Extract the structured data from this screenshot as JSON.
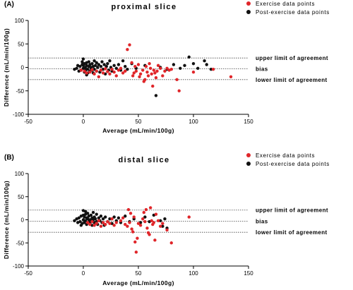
{
  "colors": {
    "exercise": "#e0262a",
    "post_exercise": "#111111",
    "axis": "#000000",
    "ref_line": "#444444"
  },
  "chart_data": [
    {
      "type": "scatter",
      "panel_label": "(A)",
      "title": "proximal slice",
      "xlabel": "Average (mL/min/100g)",
      "ylabel": "Difference (mL/min/100g)",
      "xlim": [
        -50,
        150
      ],
      "ylim": [
        -100,
        100
      ],
      "xticks": [
        "-50",
        "0",
        "50",
        "100",
        "150"
      ],
      "yticks": [
        "-100",
        "-50",
        "0",
        "50",
        "100"
      ],
      "grid": false,
      "legend_position": "top-right",
      "reference_lines": [
        {
          "label": "upper limit of agreement",
          "y": 20
        },
        {
          "label": "bias",
          "y": -3
        },
        {
          "label": "lower limit of agreement",
          "y": -26
        }
      ],
      "series": [
        {
          "name": "Exercise data points",
          "color": "exercise",
          "points": [
            [
              -2,
              -6
            ],
            [
              1,
              -8
            ],
            [
              3,
              -12
            ],
            [
              6,
              -10
            ],
            [
              8,
              -5
            ],
            [
              10,
              -14
            ],
            [
              12,
              -8
            ],
            [
              14,
              -20
            ],
            [
              16,
              -6
            ],
            [
              18,
              -12
            ],
            [
              20,
              -3
            ],
            [
              22,
              -9
            ],
            [
              24,
              -14
            ],
            [
              26,
              -4
            ],
            [
              28,
              -10
            ],
            [
              30,
              -18
            ],
            [
              32,
              -6
            ],
            [
              34,
              -2
            ],
            [
              36,
              -12
            ],
            [
              38,
              -8
            ],
            [
              40,
              38
            ],
            [
              42,
              48
            ],
            [
              44,
              10
            ],
            [
              45,
              -18
            ],
            [
              46,
              -12
            ],
            [
              47,
              2
            ],
            [
              48,
              -8
            ],
            [
              50,
              6
            ],
            [
              51,
              -20
            ],
            [
              52,
              -14
            ],
            [
              54,
              -6
            ],
            [
              55,
              -30
            ],
            [
              56,
              -26
            ],
            [
              57,
              2
            ],
            [
              58,
              -10
            ],
            [
              59,
              -18
            ],
            [
              60,
              8
            ],
            [
              61,
              -2
            ],
            [
              62,
              -14
            ],
            [
              63,
              -40
            ],
            [
              64,
              -6
            ],
            [
              65,
              -12
            ],
            [
              66,
              -22
            ],
            [
              67,
              -8
            ],
            [
              68,
              4
            ],
            [
              70,
              -2
            ],
            [
              72,
              -18
            ],
            [
              74,
              -8
            ],
            [
              76,
              -2
            ],
            [
              78,
              -6
            ],
            [
              80,
              -4
            ],
            [
              85,
              -26
            ],
            [
              87,
              -50
            ],
            [
              100,
              -10
            ],
            [
              118,
              -4
            ],
            [
              134,
              -20
            ]
          ]
        },
        {
          "name": "Post-exercise data points",
          "color": "post_exercise",
          "points": [
            [
              -8,
              -4
            ],
            [
              -6,
              -2
            ],
            [
              -5,
              4
            ],
            [
              -4,
              -8
            ],
            [
              -3,
              2
            ],
            [
              -2,
              -6
            ],
            [
              -1,
              6
            ],
            [
              0,
              -2
            ],
            [
              0,
              4
            ],
            [
              1,
              -10
            ],
            [
              1,
              8
            ],
            [
              2,
              0
            ],
            [
              2,
              -6
            ],
            [
              3,
              4
            ],
            [
              3,
              10
            ],
            [
              4,
              -4
            ],
            [
              4,
              -12
            ],
            [
              5,
              2
            ],
            [
              5,
              12
            ],
            [
              6,
              -8
            ],
            [
              6,
              6
            ],
            [
              7,
              -2
            ],
            [
              7,
              0
            ],
            [
              8,
              -6
            ],
            [
              8,
              8
            ],
            [
              9,
              2
            ],
            [
              9,
              -12
            ],
            [
              10,
              14
            ],
            [
              10,
              -4
            ],
            [
              11,
              4
            ],
            [
              12,
              -8
            ],
            [
              12,
              10
            ],
            [
              13,
              0
            ],
            [
              14,
              6
            ],
            [
              15,
              -10
            ],
            [
              16,
              2
            ],
            [
              17,
              12
            ],
            [
              18,
              -4
            ],
            [
              19,
              6
            ],
            [
              20,
              -14
            ],
            [
              21,
              2
            ],
            [
              22,
              8
            ],
            [
              23,
              -6
            ],
            [
              24,
              14
            ],
            [
              25,
              0
            ],
            [
              26,
              -8
            ],
            [
              28,
              4
            ],
            [
              30,
              -2
            ],
            [
              32,
              6
            ],
            [
              34,
              -6
            ],
            [
              36,
              14
            ],
            [
              38,
              2
            ],
            [
              40,
              -4
            ],
            [
              44,
              8
            ],
            [
              48,
              -2
            ],
            [
              56,
              4
            ],
            [
              66,
              -60
            ],
            [
              70,
              0
            ],
            [
              76,
              -4
            ],
            [
              82,
              6
            ],
            [
              88,
              -2
            ],
            [
              92,
              4
            ],
            [
              96,
              22
            ],
            [
              100,
              8
            ],
            [
              104,
              -2
            ],
            [
              110,
              14
            ],
            [
              112,
              6
            ],
            [
              116,
              -4
            ],
            [
              0,
              18
            ],
            [
              -1,
              12
            ],
            [
              3,
              -16
            ]
          ]
        }
      ]
    },
    {
      "type": "scatter",
      "panel_label": "(B)",
      "title": "distal slice",
      "xlabel": "Average (mL/min/100g)",
      "ylabel": "Difference (mL/min/100g)",
      "xlim": [
        -50,
        150
      ],
      "ylim": [
        -100,
        100
      ],
      "xticks": [
        "-50",
        "0",
        "50",
        "100",
        "150"
      ],
      "yticks": [
        "-100",
        "-50",
        "0",
        "50",
        "100"
      ],
      "grid": false,
      "legend_position": "top-right",
      "reference_lines": [
        {
          "label": "upper limit of agreement",
          "y": 21
        },
        {
          "label": "bias",
          "y": -3
        },
        {
          "label": "lower limit of agreement",
          "y": -27
        }
      ],
      "series": [
        {
          "name": "Exercise data points",
          "color": "exercise",
          "points": [
            [
              4,
              -6
            ],
            [
              6,
              -10
            ],
            [
              8,
              -4
            ],
            [
              10,
              -12
            ],
            [
              12,
              -8
            ],
            [
              14,
              -2
            ],
            [
              16,
              -14
            ],
            [
              18,
              -6
            ],
            [
              20,
              -10
            ],
            [
              22,
              -4
            ],
            [
              24,
              -8
            ],
            [
              26,
              2
            ],
            [
              28,
              -12
            ],
            [
              30,
              -6
            ],
            [
              34,
              -2
            ],
            [
              36,
              4
            ],
            [
              38,
              -10
            ],
            [
              40,
              -14
            ],
            [
              41,
              22
            ],
            [
              42,
              -6
            ],
            [
              43,
              14
            ],
            [
              44,
              -20
            ],
            [
              45,
              -26
            ],
            [
              46,
              6
            ],
            [
              47,
              -48
            ],
            [
              48,
              -70
            ],
            [
              49,
              -40
            ],
            [
              50,
              -8
            ],
            [
              52,
              -12
            ],
            [
              54,
              2
            ],
            [
              55,
              16
            ],
            [
              56,
              -4
            ],
            [
              57,
              22
            ],
            [
              58,
              -18
            ],
            [
              59,
              -28
            ],
            [
              60,
              -32
            ],
            [
              61,
              26
            ],
            [
              62,
              -2
            ],
            [
              63,
              -10
            ],
            [
              64,
              -6
            ],
            [
              65,
              -44
            ],
            [
              66,
              12
            ],
            [
              68,
              -2
            ],
            [
              70,
              -14
            ],
            [
              72,
              -8
            ],
            [
              76,
              -22
            ],
            [
              80,
              -50
            ],
            [
              96,
              6
            ]
          ]
        },
        {
          "name": "Post-exercise data points",
          "color": "post_exercise",
          "points": [
            [
              -8,
              -2
            ],
            [
              -6,
              2
            ],
            [
              -5,
              -6
            ],
            [
              -4,
              4
            ],
            [
              -3,
              -4
            ],
            [
              -2,
              8
            ],
            [
              -1,
              -8
            ],
            [
              0,
              0
            ],
            [
              0,
              10
            ],
            [
              1,
              -6
            ],
            [
              1,
              6
            ],
            [
              2,
              -2
            ],
            [
              2,
              12
            ],
            [
              3,
              4
            ],
            [
              3,
              -10
            ],
            [
              4,
              2
            ],
            [
              4,
              14
            ],
            [
              5,
              -4
            ],
            [
              5,
              8
            ],
            [
              6,
              0
            ],
            [
              6,
              -8
            ],
            [
              7,
              10
            ],
            [
              7,
              -2
            ],
            [
              8,
              4
            ],
            [
              8,
              -12
            ],
            [
              9,
              16
            ],
            [
              9,
              0
            ],
            [
              10,
              -6
            ],
            [
              10,
              6
            ],
            [
              11,
              2
            ],
            [
              12,
              -4
            ],
            [
              12,
              12
            ],
            [
              13,
              -10
            ],
            [
              14,
              4
            ],
            [
              15,
              -2
            ],
            [
              16,
              8
            ],
            [
              17,
              -6
            ],
            [
              18,
              2
            ],
            [
              19,
              -12
            ],
            [
              20,
              6
            ],
            [
              22,
              -4
            ],
            [
              24,
              2
            ],
            [
              26,
              -8
            ],
            [
              28,
              6
            ],
            [
              30,
              -2
            ],
            [
              32,
              4
            ],
            [
              34,
              -6
            ],
            [
              38,
              8
            ],
            [
              42,
              -4
            ],
            [
              46,
              2
            ],
            [
              52,
              -6
            ],
            [
              56,
              6
            ],
            [
              60,
              -4
            ],
            [
              64,
              10
            ],
            [
              70,
              -2
            ],
            [
              72,
              -14
            ],
            [
              74,
              2
            ],
            [
              76,
              -18
            ],
            [
              0,
              20
            ],
            [
              2,
              18
            ],
            [
              -2,
              -12
            ]
          ]
        }
      ]
    }
  ]
}
